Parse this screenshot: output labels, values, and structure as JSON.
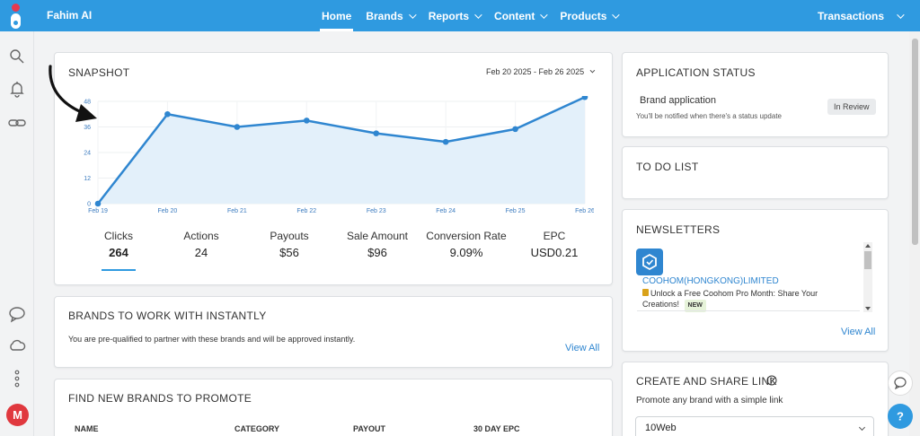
{
  "app": {
    "name": "Fahim AI"
  },
  "nav": {
    "items": [
      {
        "label": "Home",
        "active": true,
        "dropdown": false
      },
      {
        "label": "Brands",
        "active": false,
        "dropdown": true
      },
      {
        "label": "Reports",
        "active": false,
        "dropdown": true
      },
      {
        "label": "Content",
        "active": false,
        "dropdown": true
      },
      {
        "label": "Products",
        "active": false,
        "dropdown": true
      }
    ],
    "transactions_label": "Transactions"
  },
  "sidebar": {
    "icons": [
      "search-icon",
      "bell-icon",
      "link-icon",
      "chat-icon",
      "cloud-icon",
      "more-vertical-icon"
    ],
    "avatar_initial": "M"
  },
  "snapshot": {
    "title": "SNAPSHOT",
    "date_range": "Feb 20 2025 - Feb 26 2025",
    "metrics": [
      {
        "label": "Clicks",
        "value": "264"
      },
      {
        "label": "Actions",
        "value": "24"
      },
      {
        "label": "Payouts",
        "value": "$56"
      },
      {
        "label": "Sale Amount",
        "value": "$96"
      },
      {
        "label": "Conversion Rate",
        "value": "9.09%"
      },
      {
        "label": "EPC",
        "value": "USD0.21"
      }
    ]
  },
  "chart_data": {
    "type": "area",
    "x": [
      "Feb 19",
      "Feb 20",
      "Feb 21",
      "Feb 22",
      "Feb 23",
      "Feb 24",
      "Feb 25",
      "Feb 26"
    ],
    "y_ticks": [
      "0",
      "12",
      "24",
      "36",
      "48"
    ],
    "series": [
      {
        "values": [
          0,
          42,
          36,
          39,
          33,
          29,
          35,
          50
        ]
      }
    ],
    "ylim": [
      0,
      48
    ],
    "grid": true,
    "color": "#2f86d0",
    "fill": "#e3f0fa"
  },
  "brands_instant": {
    "title": "BRANDS TO WORK WITH INSTANTLY",
    "description": "You are pre-qualified to partner with these brands and will be approved instantly.",
    "view_all": "View All"
  },
  "find_brands": {
    "title": "FIND NEW BRANDS TO PROMOTE",
    "columns": [
      "NAME",
      "CATEGORY",
      "PAYOUT",
      "30 DAY EPC"
    ]
  },
  "application_status": {
    "title": "APPLICATION STATUS",
    "item_title": "Brand application",
    "item_desc": "You'll be notified when there's a status update",
    "badge": "In Review"
  },
  "todo": {
    "title": "TO DO LIST"
  },
  "newsletters": {
    "title": "NEWSLETTERS",
    "item_brand": "COOHOM(HONGKONG)LIMITED",
    "item_text": "Unlock a Free Coohom Pro Month: Share Your Creations!",
    "item_badge": "NEW",
    "view_all": "View All"
  },
  "create_link": {
    "title": "CREATE AND SHARE LINK",
    "description": "Promote any brand with a simple link",
    "select_value": "10Web"
  },
  "colors": {
    "brand": "#2f9ae0",
    "link": "#2f86d0",
    "avatar": "#e0383e"
  }
}
